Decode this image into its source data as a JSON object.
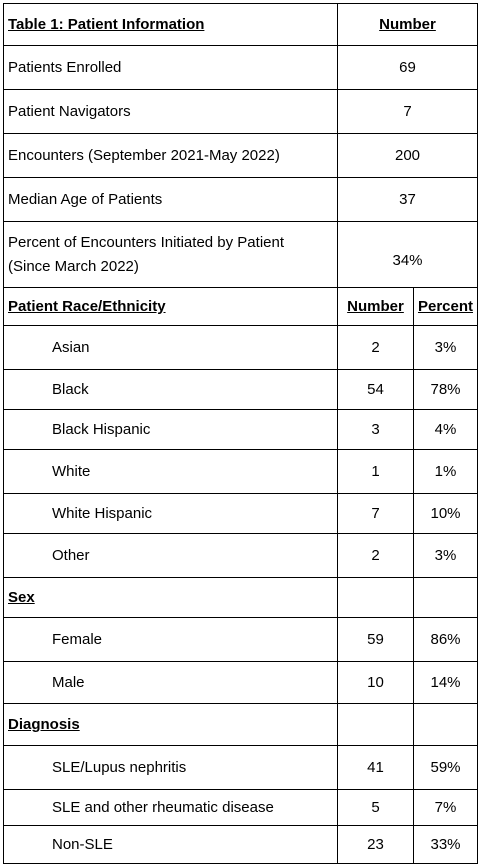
{
  "patient_info": {
    "title": "Table 1: Patient Information",
    "number_header": "Number",
    "rows": [
      {
        "label": "Patients Enrolled",
        "value": "69"
      },
      {
        "label": "Patient Navigators",
        "value": "7"
      },
      {
        "label": "Encounters (September 2021-May 2022)",
        "value": "200"
      },
      {
        "label": "Median Age of Patients",
        "value": "37"
      },
      {
        "label_line1": "Percent of Encounters Initiated by Patient",
        "label_line2": "(Since March 2022)",
        "value": "34%"
      }
    ]
  },
  "race": {
    "title": "Patient Race/Ethnicity",
    "number_header": "Number",
    "percent_header": "Percent",
    "rows": [
      {
        "label": "Asian",
        "number": "2",
        "percent": "3%"
      },
      {
        "label": "Black",
        "number": "54",
        "percent": "78%"
      },
      {
        "label": "Black Hispanic",
        "number": "3",
        "percent": "4%"
      },
      {
        "label": "White",
        "number": "1",
        "percent": "1%"
      },
      {
        "label": "White Hispanic",
        "number": "7",
        "percent": "10%"
      },
      {
        "label": "Other",
        "number": "2",
        "percent": "3%"
      }
    ]
  },
  "sex": {
    "title": "Sex",
    "rows": [
      {
        "label": "Female",
        "number": "59",
        "percent": "86%"
      },
      {
        "label": "Male",
        "number": "10",
        "percent": "14%"
      }
    ]
  },
  "diagnosis": {
    "title": "Diagnosis",
    "rows": [
      {
        "label": "SLE/Lupus nephritis",
        "number": "41",
        "percent": "59%"
      },
      {
        "label": "SLE and other rheumatic disease",
        "number": "5",
        "percent": "7%"
      },
      {
        "label": "Non-SLE",
        "number": "23",
        "percent": "33%"
      }
    ]
  }
}
